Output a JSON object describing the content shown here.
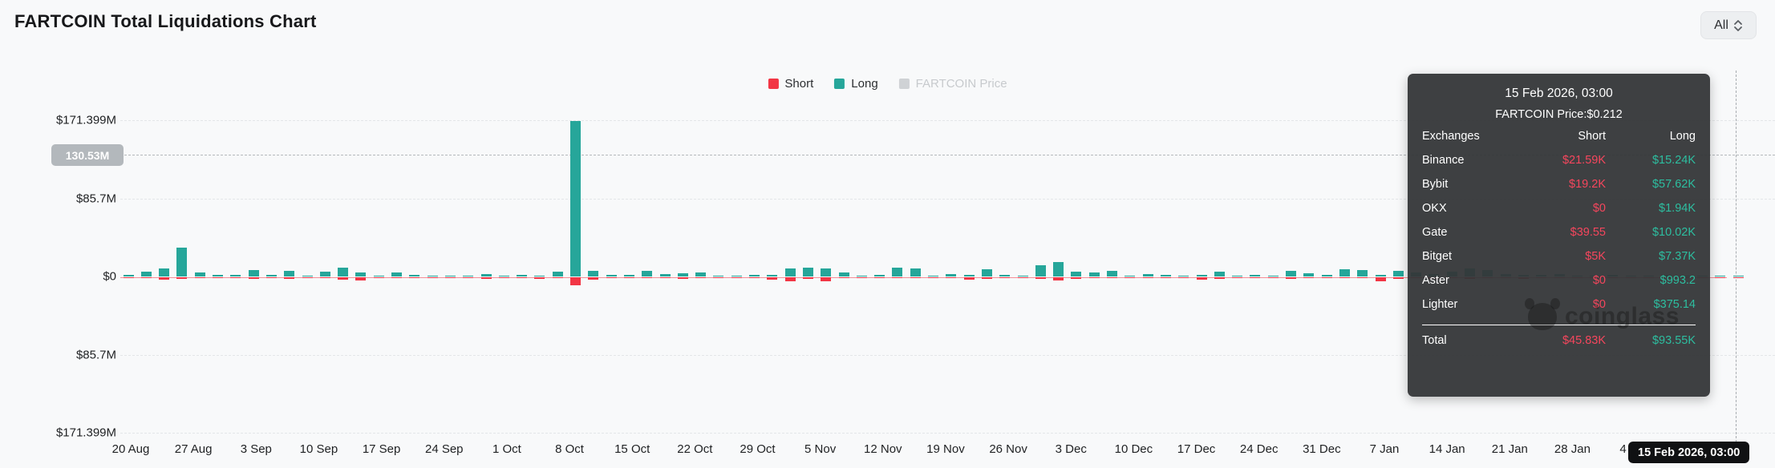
{
  "header": {
    "title": "FARTCOIN Total Liquidations Chart",
    "range_selector": {
      "value": "All"
    }
  },
  "legend": {
    "items": [
      {
        "label": "Short",
        "color": "#f23645",
        "active": true
      },
      {
        "label": "Long",
        "color": "#26a69a",
        "active": true
      },
      {
        "label": "FARTCOIN Price",
        "color": "#cfd2d5",
        "active": false
      }
    ]
  },
  "y_axis": {
    "labels": [
      "$171.399M",
      "$85.7M",
      "$0",
      "$85.7M",
      "$171.399M"
    ]
  },
  "price_line": {
    "label": "130.53M",
    "badge_color": "#b3b8bc"
  },
  "chart_data": {
    "type": "bar",
    "title": "FARTCOIN Total Liquidations Chart",
    "unit": "USD millions",
    "axis_style": "mirrored: Long plotted up, Short plotted down from $0 baseline",
    "ylim_m": [
      -171.399,
      171.399
    ],
    "y_ticks": [
      "$171.399M",
      "$85.7M",
      "$0",
      "$85.7M",
      "$171.399M"
    ],
    "price_axis_value": "130.53M",
    "bar_interval_days": 2,
    "grid": "horizontal dashed",
    "legend_position": "top-center",
    "x_tick_labels": [
      "20 Aug",
      "27 Aug",
      "3 Sep",
      "10 Sep",
      "17 Sep",
      "24 Sep",
      "1 Oct",
      "8 Oct",
      "15 Oct",
      "22 Oct",
      "29 Oct",
      "5 Nov",
      "12 Nov",
      "19 Nov",
      "26 Nov",
      "3 Dec",
      "10 Dec",
      "17 Dec",
      "24 Dec",
      "31 Dec",
      "7 Jan",
      "14 Jan",
      "21 Jan",
      "28 Jan",
      "4 Feb"
    ],
    "series": [
      {
        "name": "Long",
        "color": "#26a69a",
        "direction": "up",
        "values_m": [
          1.5,
          5,
          9,
          32,
          4,
          1.5,
          2,
          7,
          1.5,
          6,
          0.8,
          5,
          10,
          4,
          1.2,
          4,
          2,
          1,
          0.5,
          0.4,
          3,
          0.8,
          1.5,
          1.2,
          5,
          171.4,
          6,
          1.5,
          2,
          6.5,
          3,
          3.5,
          4,
          0.5,
          0.3,
          2,
          1.5,
          9,
          9.5,
          9,
          4,
          0.5,
          1.5,
          10,
          9,
          1,
          2.5,
          1.5,
          8,
          1.5,
          1,
          12,
          16,
          5,
          4.5,
          6,
          1,
          3,
          1.5,
          0.8,
          1.5,
          5,
          0.8,
          1.5,
          1.2,
          6,
          3.5,
          1.5,
          8,
          7.5,
          2,
          6,
          4,
          3,
          5,
          9,
          7,
          3,
          2,
          1.5,
          2.5,
          1.2,
          1,
          1.5,
          1,
          0.8,
          1.5,
          0.6,
          0.8,
          0.3,
          0.09
        ]
      },
      {
        "name": "Short",
        "color": "#f23645",
        "direction": "down",
        "values_m": [
          0.5,
          1.2,
          2.5,
          2,
          1,
          0.5,
          0.8,
          2.2,
          0.6,
          2,
          0.4,
          1,
          3,
          3.5,
          0.8,
          0.6,
          0.5,
          0.3,
          0.3,
          0.2,
          1.5,
          0.4,
          1,
          1.8,
          1,
          9,
          2.5,
          0.8,
          1.2,
          1,
          0.8,
          1.5,
          0.8,
          0.3,
          0.2,
          1,
          3,
          4.5,
          1.5,
          4.5,
          0.8,
          0.3,
          0.8,
          1,
          1.2,
          0.5,
          0.5,
          2.5,
          1.5,
          0.8,
          0.5,
          2,
          3.5,
          1.5,
          1,
          1.2,
          0.5,
          0.8,
          0.5,
          0.4,
          2.5,
          1.5,
          0.5,
          0.8,
          0.5,
          1.5,
          1,
          0.8,
          1.2,
          1,
          4,
          1.5,
          1,
          2,
          1,
          1.5,
          1.2,
          0.8,
          1.5,
          0.5,
          0.8,
          0.5,
          0.4,
          0.6,
          0.5,
          0.3,
          1,
          0.3,
          0.4,
          0.2,
          0.05
        ]
      }
    ]
  },
  "tooltip": {
    "title": "15 Feb 2026, 03:00",
    "subtitle": "FARTCOIN Price:$0.212",
    "columns": {
      "name": "Exchanges",
      "short": "Short",
      "long": "Long"
    },
    "rows": [
      {
        "name": "Binance",
        "short": "$21.59K",
        "long": "$15.24K"
      },
      {
        "name": "Bybit",
        "short": "$19.2K",
        "long": "$57.62K"
      },
      {
        "name": "OKX",
        "short": "$0",
        "long": "$1.94K"
      },
      {
        "name": "Gate",
        "short": "$39.55",
        "long": "$10.02K"
      },
      {
        "name": "Bitget",
        "short": "$5K",
        "long": "$7.37K"
      },
      {
        "name": "Aster",
        "short": "$0",
        "long": "$993.2"
      },
      {
        "name": "Lighter",
        "short": "$0",
        "long": "$375.14"
      }
    ],
    "total": {
      "name": "Total",
      "short": "$45.83K",
      "long": "$93.55K"
    },
    "short_color": "#f6465d",
    "long_color": "#2dbea0"
  },
  "crosshair": {
    "date_badge": "15 Feb 2026, 03:00"
  },
  "watermark": {
    "text": "coinglass"
  }
}
